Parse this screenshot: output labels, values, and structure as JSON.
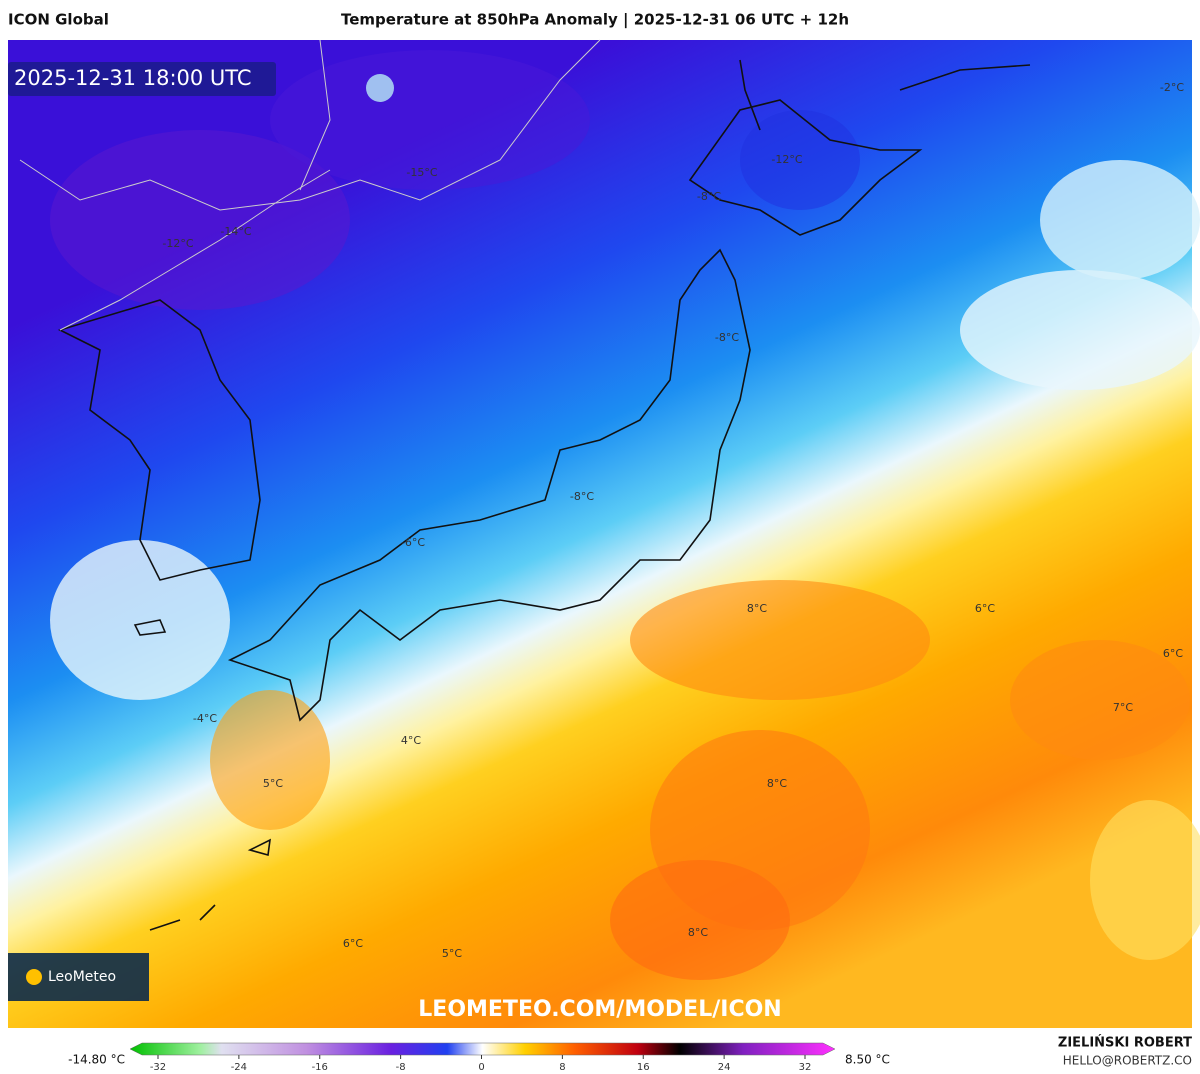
{
  "header": {
    "model": "ICON Global",
    "title": "Temperature at 850hPa Anomaly | 2025-12-31 06 UTC + 12h"
  },
  "timestamp": "2025-12-31 18:00 UTC",
  "map_labels": [
    "-2°C",
    "-12°C",
    "-15°C",
    "-8°C",
    "-12°C",
    "-14°C",
    "-8°C",
    "-8°C",
    "-6°C",
    "8°C",
    "6°C",
    "6°C",
    "7°C",
    "-4°C",
    "4°C",
    "8°C",
    "5°C",
    "8°C",
    "6°C",
    "5°C"
  ],
  "logo": "LeoMeteo",
  "watermark": "LEOMETEO.COM/MODEL/ICON",
  "colorbar": {
    "min_label": "-14.80 °C",
    "max_label": "8.50 °C",
    "ticks": [
      -32,
      -24,
      -16,
      -8,
      0,
      8,
      16,
      24,
      32
    ]
  },
  "footer": {
    "author": "ZIELIŃSKI ROBERT",
    "email": "HELLO@ROBERTZ.CO"
  }
}
